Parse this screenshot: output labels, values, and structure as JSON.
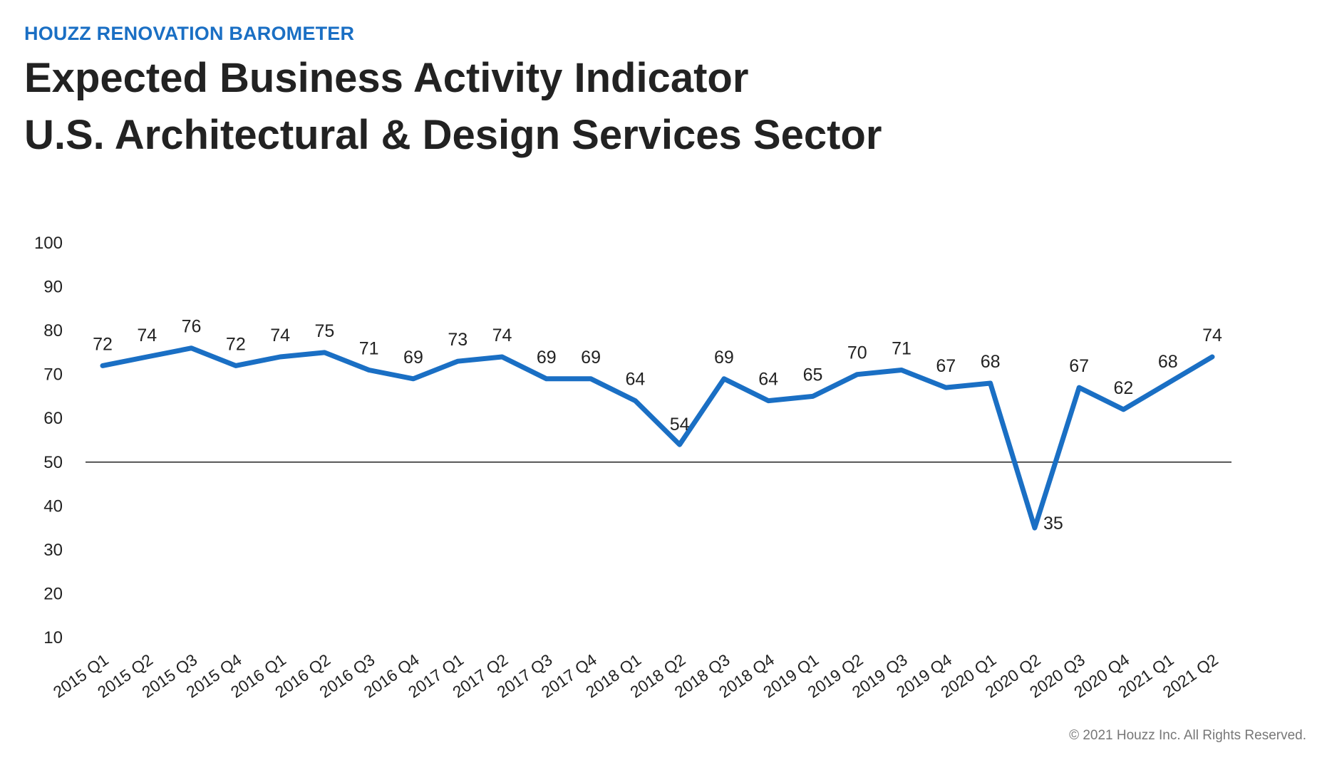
{
  "header": {
    "kicker": "HOUZZ RENOVATION BAROMETER",
    "title_line1": "Expected Business Activity Indicator",
    "title_line2": "U.S. Architectural & Design Services Sector"
  },
  "footer": {
    "copyright": "© 2021 Houzz Inc. All Rights Reserved."
  },
  "colors": {
    "line": "#1a6fc4",
    "kicker": "#1a6fc4",
    "reference_line": "#222222"
  },
  "chart_data": {
    "type": "line",
    "title": "",
    "xlabel": "",
    "ylabel": "",
    "ylim": [
      10,
      100
    ],
    "yticks": [
      100,
      90,
      80,
      70,
      60,
      50,
      40,
      30,
      20,
      10
    ],
    "reference_line": 50,
    "grid": false,
    "legend": "none",
    "categories": [
      "2015 Q1",
      "2015 Q2",
      "2015 Q3",
      "2015 Q4",
      "2016 Q1",
      "2016 Q2",
      "2016 Q3",
      "2016 Q4",
      "2017 Q1",
      "2017 Q2",
      "2017 Q3",
      "2017 Q4",
      "2018 Q1",
      "2018 Q2",
      "2018 Q3",
      "2018 Q4",
      "2019 Q1",
      "2019 Q2",
      "2019 Q3",
      "2019 Q4",
      "2020 Q1",
      "2020 Q2",
      "2020 Q3",
      "2020 Q4",
      "2021 Q1",
      "2021 Q2"
    ],
    "series": [
      {
        "values": [
          72,
          74,
          76,
          72,
          74,
          75,
          71,
          69,
          73,
          74,
          69,
          69,
          64,
          54,
          69,
          64,
          65,
          70,
          71,
          67,
          68,
          35,
          67,
          62,
          68,
          74
        ]
      }
    ]
  }
}
